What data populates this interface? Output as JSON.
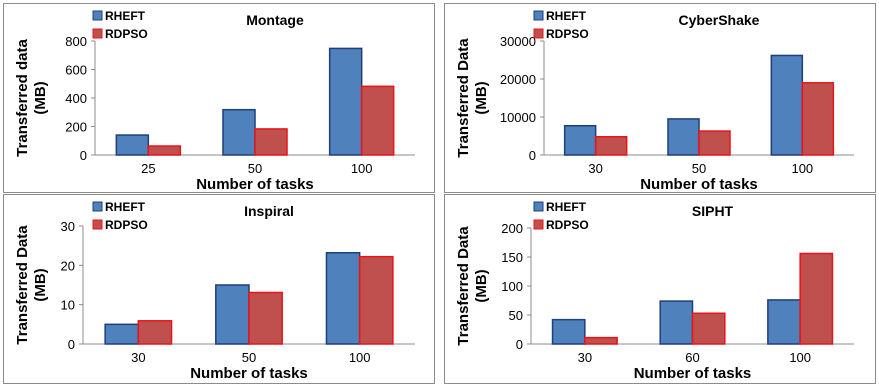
{
  "chart_data": [
    {
      "type": "bar",
      "title": "Montage",
      "xlabel": "Number of tasks",
      "ylabel": "Transferred data (MB)",
      "categories": [
        "25",
        "50",
        "100"
      ],
      "series": [
        {
          "name": "RHEFT",
          "values": [
            140,
            318,
            748
          ]
        },
        {
          "name": "RDPSO",
          "values": [
            63,
            183,
            482
          ]
        }
      ],
      "ylim": [
        0,
        800
      ],
      "yticks": [
        "0",
        "200",
        "400",
        "600",
        "800"
      ],
      "colors": [
        "#4F81BD",
        "#C0504D"
      ],
      "edge_colors": [
        "#1F3F7A",
        "#E8141A"
      ],
      "grid": false,
      "legend": "top-left"
    },
    {
      "type": "bar",
      "title": "CyberShake",
      "xlabel": "Number of tasks",
      "ylabel": "Transferred Data (MB)",
      "categories": [
        "30",
        "50",
        "100"
      ],
      "series": [
        {
          "name": "RHEFT",
          "values": [
            7700,
            9500,
            26200
          ]
        },
        {
          "name": "RDPSO",
          "values": [
            4800,
            6300,
            19000
          ]
        }
      ],
      "ylim": [
        0,
        30000
      ],
      "yticks": [
        "0",
        "10000",
        "20000",
        "30000"
      ],
      "colors": [
        "#4F81BD",
        "#C0504D"
      ],
      "edge_colors": [
        "#1F3F7A",
        "#E8141A"
      ],
      "grid": false,
      "legend": "top-left"
    },
    {
      "type": "bar",
      "title": "Inspiral",
      "xlabel": "Number of tasks",
      "ylabel": "Transferred Data (MB)",
      "categories": [
        "30",
        "50",
        "100"
      ],
      "series": [
        {
          "name": "RHEFT",
          "values": [
            5,
            15,
            23.2
          ]
        },
        {
          "name": "RDPSO",
          "values": [
            5.9,
            13.1,
            22.2
          ]
        }
      ],
      "ylim": [
        0,
        30
      ],
      "yticks": [
        "0",
        "10",
        "20",
        "30"
      ],
      "colors": [
        "#4F81BD",
        "#C0504D"
      ],
      "edge_colors": [
        "#1F3F7A",
        "#E8141A"
      ],
      "grid": false,
      "legend": "top-left"
    },
    {
      "type": "bar",
      "title": "SIPHT",
      "xlabel": "Number of tasks",
      "ylabel": "Transferred Data (MB)",
      "categories": [
        "30",
        "60",
        "100"
      ],
      "series": [
        {
          "name": "RHEFT",
          "values": [
            42,
            74,
            76
          ]
        },
        {
          "name": "RDPSO",
          "values": [
            11,
            53,
            156
          ]
        }
      ],
      "ylim": [
        0,
        200
      ],
      "yticks": [
        "0",
        "50",
        "100",
        "150",
        "200"
      ],
      "colors": [
        "#4F81BD",
        "#C0504D"
      ],
      "edge_colors": [
        "#1F3F7A",
        "#E8141A"
      ],
      "grid": false,
      "legend": "top-left"
    }
  ]
}
